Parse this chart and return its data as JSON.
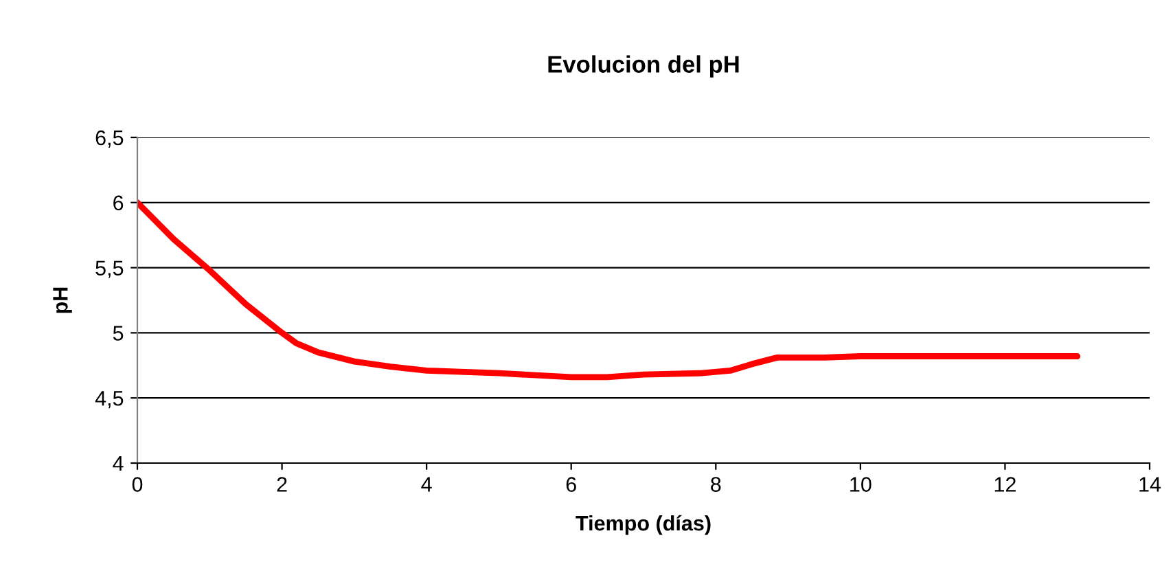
{
  "chart_data": {
    "type": "line",
    "title": "Evolucion del pH",
    "xlabel": "Tiempo (días)",
    "ylabel": "pH",
    "x": [
      0,
      0.5,
      1,
      1.5,
      2,
      2.2,
      2.5,
      3,
      3.5,
      4,
      5,
      6,
      6.5,
      7,
      7.8,
      8.2,
      8.5,
      8.85,
      9.5,
      10,
      13
    ],
    "series": [
      {
        "color": "#ff0000",
        "values": [
          6.0,
          5.72,
          5.48,
          5.22,
          5.0,
          4.92,
          4.85,
          4.78,
          4.74,
          4.71,
          4.69,
          4.66,
          4.66,
          4.68,
          4.69,
          4.71,
          4.76,
          4.81,
          4.81,
          4.82,
          4.82
        ]
      }
    ],
    "xlim": [
      0,
      14
    ],
    "xticks": [
      0,
      2,
      4,
      6,
      8,
      10,
      12,
      14
    ],
    "ylim": [
      4,
      6.5
    ],
    "yticks": [
      4,
      {
        "value": 4.5,
        "label": "4,5"
      },
      {
        "value": 5,
        "label": "5"
      },
      {
        "value": 5.5,
        "label": "5,5"
      },
      6,
      {
        "value": 6.5,
        "label": "6,5"
      }
    ],
    "grid": "y",
    "legend": false,
    "marker": "none",
    "line_style": "solid"
  }
}
